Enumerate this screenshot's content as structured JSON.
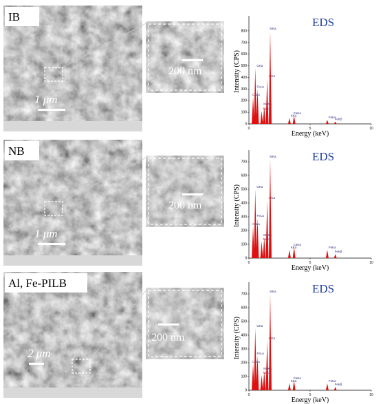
{
  "panels": [
    {
      "label": "IB",
      "scale": "1 μm",
      "inset_scale": "200 nm"
    },
    {
      "label": "NB",
      "scale": "1 μm",
      "inset_scale": "200 nm"
    },
    {
      "label": "Al, Fe-PILB",
      "scale": "2 μm",
      "inset_scale": "200 nm"
    }
  ],
  "chart_data": [
    {
      "type": "spectrum",
      "title": "EDS",
      "x_label": "Energy (keV)",
      "y_label": "Intensity (CPS)",
      "color": "#e01010",
      "peak_labels": [
        "CaLa",
        "OKa",
        "FeLa",
        "NaKa",
        "MgKa",
        "AlKa",
        "SiKa",
        "KKa",
        "CaKa",
        "FeKa",
        "FeKβ"
      ],
      "x": [
        0.34,
        0.52,
        0.7,
        1.04,
        1.25,
        1.49,
        1.74,
        3.31,
        3.69,
        6.4,
        7.06
      ],
      "values": [
        230,
        480,
        300,
        110,
        150,
        390,
        800,
        50,
        70,
        35,
        20
      ],
      "xlim": [
        0,
        10
      ],
      "ylim": [
        0,
        900
      ],
      "xticks": [
        0,
        5,
        10
      ],
      "yticks": [
        0,
        100,
        200,
        300,
        400,
        500,
        600,
        700,
        800
      ]
    },
    {
      "type": "spectrum",
      "title": "EDS",
      "x_label": "Energy (keV)",
      "y_label": "Intensity (CPS)",
      "color": "#e01010",
      "peak_labels": [
        "CaLa",
        "OKa",
        "FeLa",
        "NaKa",
        "MgKa",
        "AlKa",
        "SiKa",
        "KKa",
        "CaKa",
        "FeKa",
        "FeKβ"
      ],
      "x": [
        0.34,
        0.52,
        0.7,
        1.04,
        1.25,
        1.49,
        1.74,
        3.31,
        3.69,
        6.4,
        7.06
      ],
      "values": [
        230,
        500,
        290,
        120,
        150,
        420,
        720,
        60,
        80,
        60,
        30
      ],
      "xlim": [
        0,
        10
      ],
      "ylim": [
        0,
        760
      ],
      "xticks": [
        0,
        5,
        10
      ],
      "yticks": [
        0,
        100,
        200,
        300,
        400,
        500,
        600,
        700
      ]
    },
    {
      "type": "spectrum",
      "title": "EDS",
      "x_label": "Energy (keV)",
      "y_label": "Intensity (CPS)",
      "color": "#e01010",
      "peak_labels": [
        "CaLa",
        "OKa",
        "FeLa",
        "NaKa",
        "MgKa",
        "AlKa",
        "SiKa",
        "KKa",
        "CaKa",
        "FeKa",
        "FeKβ"
      ],
      "x": [
        0.34,
        0.52,
        0.7,
        1.04,
        1.25,
        1.49,
        1.74,
        3.31,
        3.69,
        6.4,
        7.06
      ],
      "values": [
        190,
        450,
        250,
        110,
        140,
        360,
        700,
        50,
        70,
        50,
        25
      ],
      "xlim": [
        0,
        10
      ],
      "ylim": [
        0,
        760
      ],
      "xticks": [
        0,
        5,
        10
      ],
      "yticks": [
        0,
        100,
        200,
        300,
        400,
        500,
        600,
        700
      ]
    }
  ]
}
